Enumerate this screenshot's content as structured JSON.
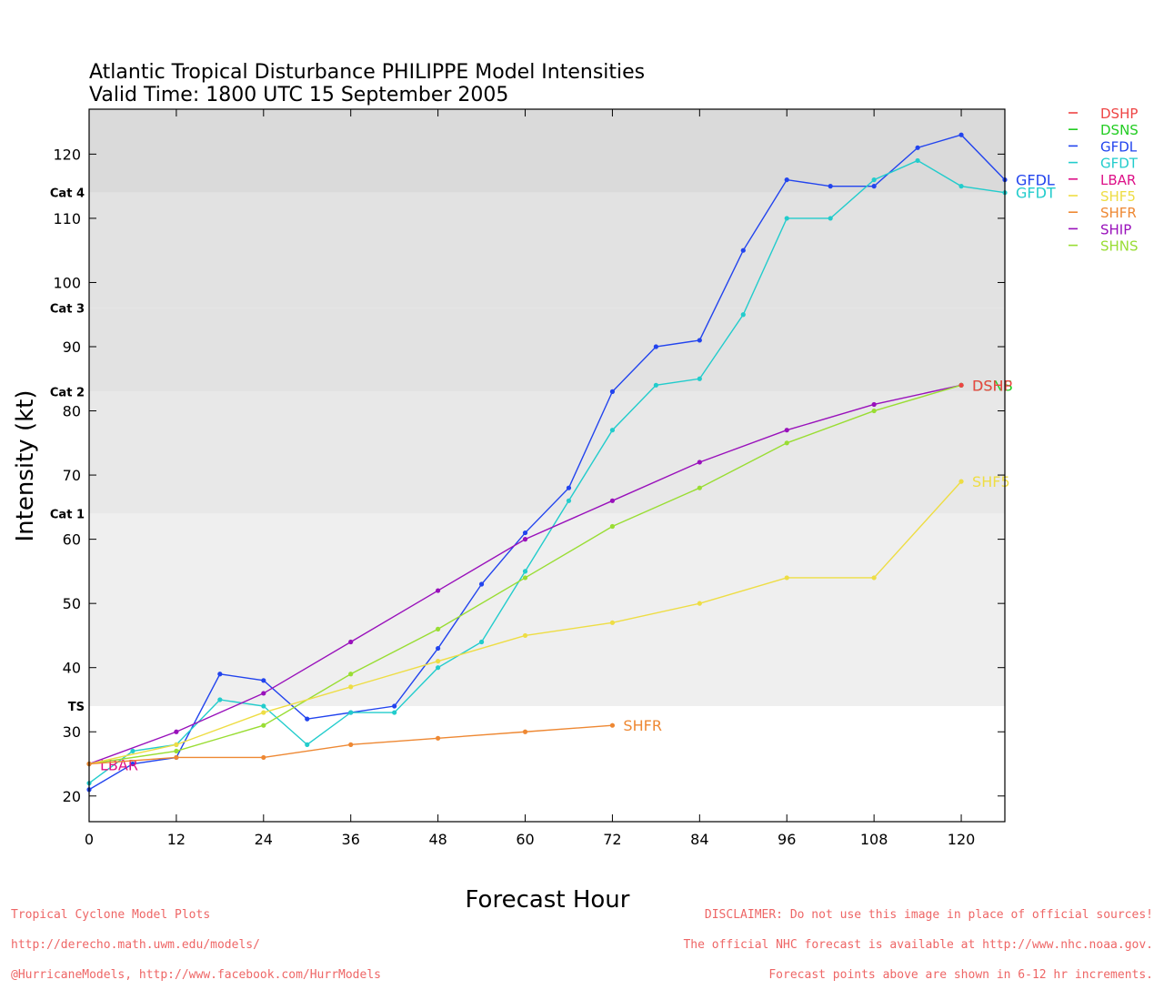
{
  "chart_data": {
    "type": "line",
    "title": "Atlantic Tropical Disturbance PHILIPPE Model Intensities",
    "subtitle": "Valid Time: 1800 UTC 15 September 2005",
    "xlabel": "Forecast Hour",
    "ylabel": "Intensity (kt)",
    "xlim": [
      0,
      126
    ],
    "ylim": [
      16,
      127
    ],
    "xticks": [
      0,
      12,
      24,
      36,
      48,
      60,
      72,
      84,
      96,
      108,
      120
    ],
    "yticks": [
      20,
      30,
      40,
      50,
      60,
      70,
      80,
      90,
      100,
      110,
      120
    ],
    "grid": false,
    "legend_position": "right",
    "categories_bands": [
      {
        "label": "TS",
        "from": 34,
        "to": 64,
        "color": "#efefef"
      },
      {
        "label": "Cat 1",
        "from": 64,
        "to": 83,
        "color": "#e8e8e8"
      },
      {
        "label": "Cat 2",
        "from": 83,
        "to": 96,
        "color": "#e2e2e2"
      },
      {
        "label": "Cat 3",
        "from": 96,
        "to": 114,
        "color": "#e2e2e2"
      },
      {
        "label": "Cat 4",
        "from": 114,
        "to": 127,
        "color": "#dadada"
      }
    ],
    "legend": [
      {
        "name": "DSHP",
        "color": "#ee4444"
      },
      {
        "name": "DSNS",
        "color": "#22cc22"
      },
      {
        "name": "GFDL",
        "color": "#2244ee"
      },
      {
        "name": "GFDT",
        "color": "#22cccc"
      },
      {
        "name": "LBAR",
        "color": "#dd1188"
      },
      {
        "name": "SHF5",
        "color": "#eedd44"
      },
      {
        "name": "SHFR",
        "color": "#ee8833"
      },
      {
        "name": "SHIP",
        "color": "#9911bb"
      },
      {
        "name": "SHNS",
        "color": "#99dd33"
      }
    ],
    "series": [
      {
        "name": "GFDL",
        "color": "#2244ee",
        "label": "GFDL",
        "x": [
          0,
          6,
          12,
          18,
          24,
          30,
          36,
          42,
          48,
          54,
          60,
          66,
          72,
          78,
          84,
          90,
          96,
          102,
          108,
          114,
          120,
          126
        ],
        "y": [
          21,
          25,
          26,
          39,
          38,
          32,
          33,
          34,
          43,
          53,
          61,
          68,
          83,
          90,
          91,
          105,
          116,
          115,
          115,
          121,
          123,
          116
        ]
      },
      {
        "name": "GFDT",
        "color": "#22cccc",
        "label": "GFDT",
        "x": [
          0,
          6,
          12,
          18,
          24,
          30,
          36,
          42,
          48,
          54,
          60,
          66,
          72,
          78,
          84,
          90,
          96,
          102,
          108,
          114,
          120,
          126
        ],
        "y": [
          22,
          27,
          28,
          35,
          34,
          28,
          33,
          33,
          40,
          44,
          55,
          66,
          77,
          84,
          85,
          95,
          110,
          110,
          116,
          119,
          115,
          114
        ]
      },
      {
        "name": "SHIP",
        "color": "#9911bb",
        "label": "",
        "x": [
          0,
          12,
          24,
          36,
          48,
          60,
          72,
          84,
          96,
          108,
          120
        ],
        "y": [
          25,
          30,
          36,
          44,
          52,
          60,
          66,
          72,
          77,
          81,
          84
        ]
      },
      {
        "name": "LBAR",
        "color": "#dd1188",
        "label": "LBAR",
        "x": [
          0
        ],
        "y": [
          25
        ]
      },
      {
        "name": "SHNS",
        "color": "#99dd33",
        "label": "",
        "x": [
          0,
          12,
          24,
          36,
          48,
          60,
          72,
          84,
          96,
          108,
          120
        ],
        "y": [
          25,
          27,
          31,
          39,
          46,
          54,
          62,
          68,
          75,
          80,
          84
        ]
      },
      {
        "name": "DSNS",
        "color": "#22cc22",
        "label": "DSNS",
        "x": [
          120
        ],
        "y": [
          84
        ]
      },
      {
        "name": "DSHP",
        "color": "#ee4444",
        "label": "DSHP",
        "x": [
          120
        ],
        "y": [
          84
        ]
      },
      {
        "name": "SHF5",
        "color": "#eedd44",
        "label": "SHF5",
        "x": [
          0,
          12,
          24,
          36,
          48,
          60,
          72,
          84,
          96,
          108,
          120
        ],
        "y": [
          25,
          28,
          33,
          37,
          41,
          45,
          47,
          50,
          54,
          54,
          69
        ]
      },
      {
        "name": "SHFR",
        "color": "#ee8833",
        "label": "SHFR",
        "x": [
          0,
          12,
          24,
          36,
          48,
          60,
          72
        ],
        "y": [
          25,
          26,
          26,
          28,
          29,
          30,
          31
        ]
      }
    ]
  },
  "footer": {
    "left": [
      "Tropical Cyclone Model Plots",
      "http://derecho.math.uwm.edu/models/",
      "@HurricaneModels, http://www.facebook.com/HurrModels"
    ],
    "right": [
      "DISCLAIMER: Do not use this image in place of official sources!",
      "The official NHC forecast is available at http://www.nhc.noaa.gov.",
      "Forecast points above are shown in 6-12 hr increments."
    ]
  }
}
